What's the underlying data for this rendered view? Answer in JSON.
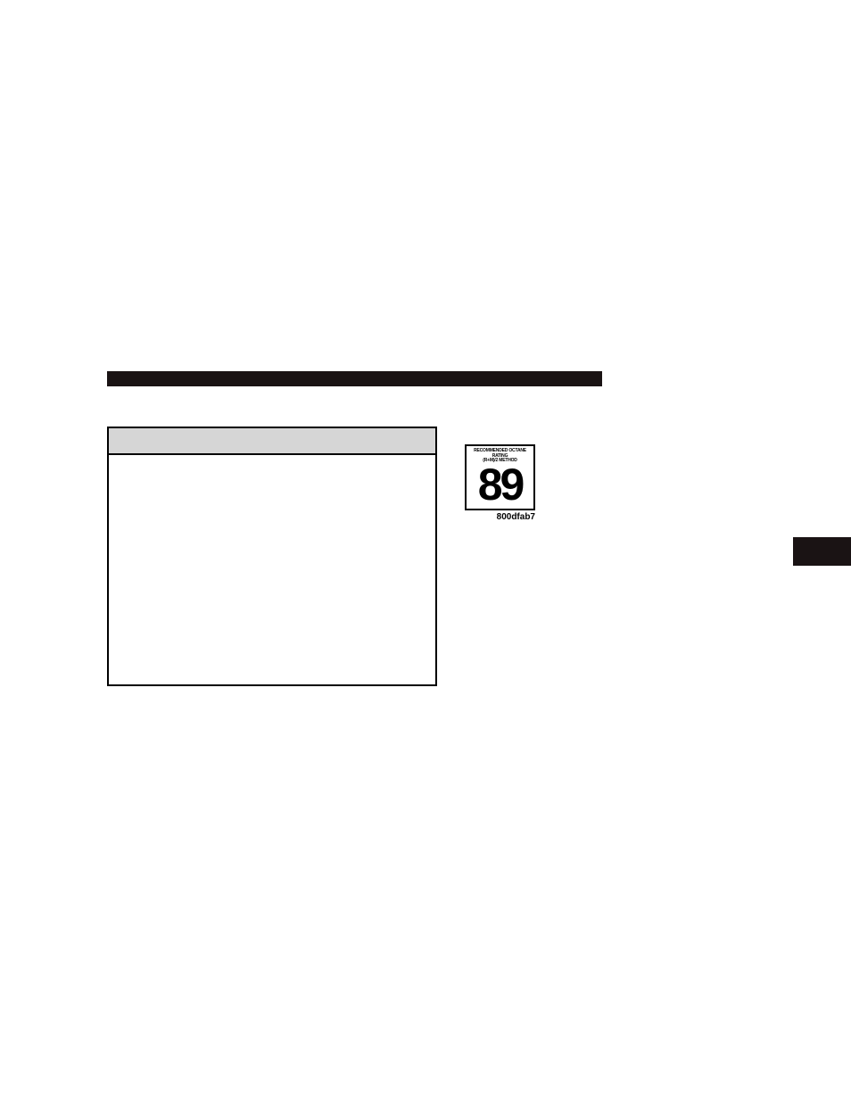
{
  "layout": {
    "black_bar": {
      "color": "#1a1314"
    },
    "table": {
      "header_bg": "#d6d6d6",
      "border_color": "#000000"
    }
  },
  "octane_label": {
    "line1": "RECOMMENDED OCTANE RATING",
    "line2": "(R+M)/2 METHOD",
    "number": "89",
    "caption": "800dfab7",
    "border_color": "#000000",
    "text_color": "#000000"
  },
  "side_tab": {
    "color": "#1a1314"
  }
}
